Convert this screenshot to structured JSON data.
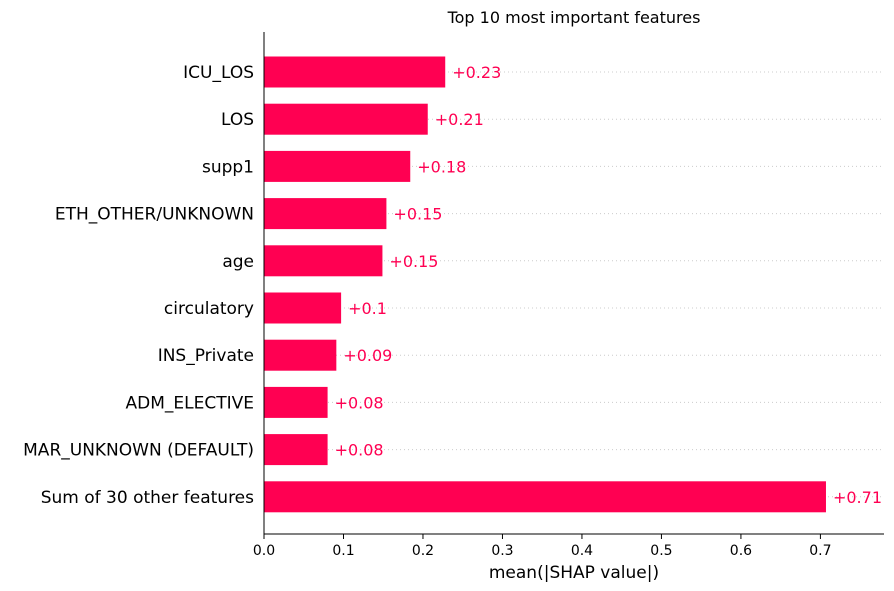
{
  "chart_data": {
    "type": "bar",
    "orientation": "horizontal",
    "title": "Top 10 most important features",
    "xlabel": "mean(|SHAP value|)",
    "ylabel": "",
    "categories": [
      "ICU_LOS",
      "LOS",
      "supp1",
      "ETH_OTHER/UNKNOWN",
      "age",
      "circulatory",
      "INS_Private",
      "ADM_ELECTIVE",
      "MAR_UNKNOWN (DEFAULT)",
      "Sum of 30 other features"
    ],
    "values": [
      0.228,
      0.206,
      0.184,
      0.154,
      0.149,
      0.097,
      0.091,
      0.08,
      0.08,
      0.707
    ],
    "data_labels": [
      "+0.23",
      "+0.21",
      "+0.18",
      "+0.15",
      "+0.15",
      "+0.1",
      "+0.09",
      "+0.08",
      "+0.08",
      "+0.71"
    ],
    "xlim": [
      0,
      0.78
    ],
    "xticks": [
      0.0,
      0.1,
      0.2,
      0.3,
      0.4,
      0.5,
      0.6,
      0.7
    ],
    "xtick_labels": [
      "0.0",
      "0.1",
      "0.2",
      "0.3",
      "0.4",
      "0.5",
      "0.6",
      "0.7"
    ],
    "grid": "dotted horizontal guides per row",
    "legend": "none",
    "colors": {
      "bar": "#ff0052",
      "label": "#ff0052",
      "axis": "#000000",
      "guide": "#cccccc"
    }
  }
}
